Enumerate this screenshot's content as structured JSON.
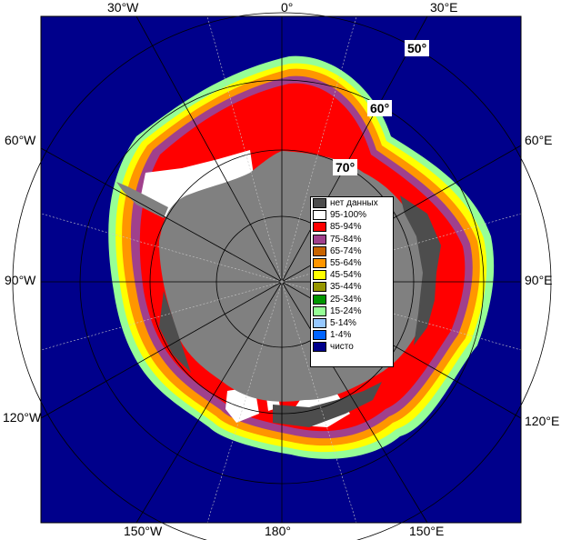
{
  "map": {
    "longitude_labels": {
      "top": [
        "30°W",
        "0°",
        "30°E"
      ],
      "left": [
        "60°W",
        "90°W",
        "120°W"
      ],
      "right": [
        "60°E",
        "90°E",
        "120°E"
      ],
      "bottom": [
        "150°W",
        "180°",
        "150°E"
      ]
    },
    "latitude_labels": [
      "50°",
      "60°",
      "70°"
    ],
    "colors": {
      "ocean": "#00008b",
      "land": "#808080",
      "no_data": "#4d4d4d"
    }
  },
  "legend": {
    "items": [
      {
        "label": "нет данных",
        "color": "#4d4d4d"
      },
      {
        "label": "95-100%",
        "color": "#ffffff"
      },
      {
        "label": "85-94%",
        "color": "#ff0000"
      },
      {
        "label": "75-84%",
        "color": "#a0408c"
      },
      {
        "label": "65-74%",
        "color": "#c86400"
      },
      {
        "label": "55-64%",
        "color": "#ff9600"
      },
      {
        "label": "45-54%",
        "color": "#ffff00"
      },
      {
        "label": "35-44%",
        "color": "#969600"
      },
      {
        "label": "25-34%",
        "color": "#009600"
      },
      {
        "label": "15-24%",
        "color": "#96ff96"
      },
      {
        "label": "5-14%",
        "color": "#96c8ff"
      },
      {
        "label": "1-4%",
        "color": "#0064ff"
      },
      {
        "label": "чисто",
        "color": "#00008b"
      }
    ]
  }
}
